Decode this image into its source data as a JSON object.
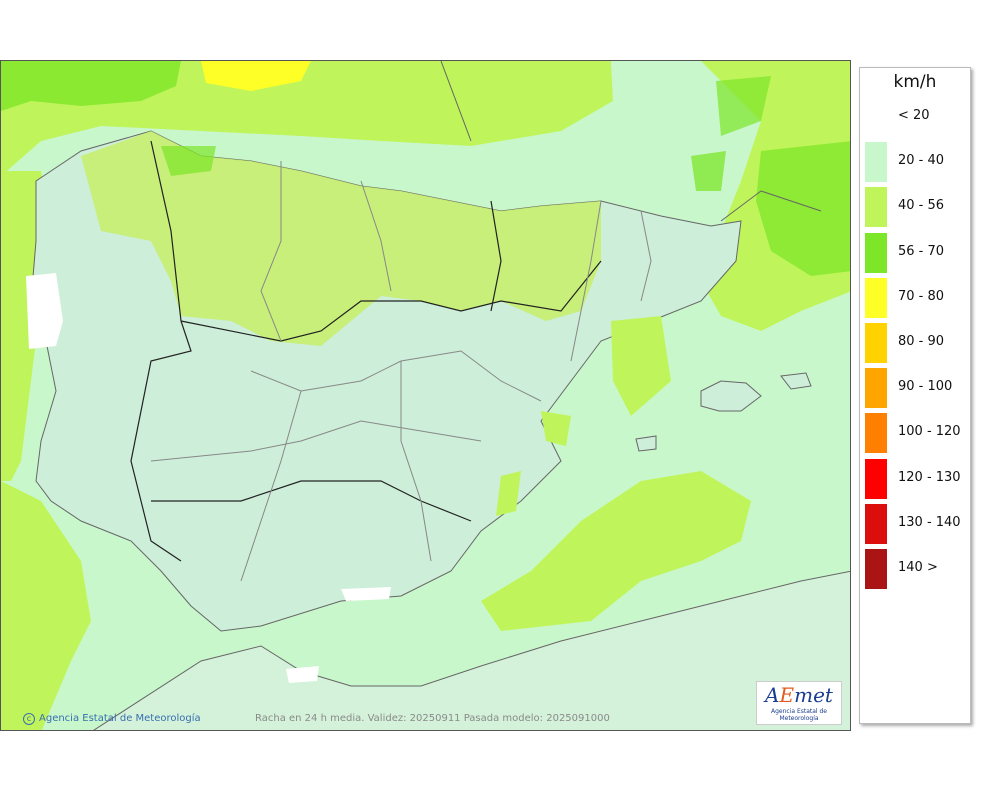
{
  "legend": {
    "title": "km/h",
    "items": [
      {
        "label": "< 20",
        "color": null
      },
      {
        "label": "20 - 40",
        "color": "#c8f7cc"
      },
      {
        "label": "40 - 56",
        "color": "#bff55a"
      },
      {
        "label": "56 - 70",
        "color": "#7ee628"
      },
      {
        "label": "70 - 80",
        "color": "#ffff28"
      },
      {
        "label": "80 - 90",
        "color": "#ffd200"
      },
      {
        "label": "90 - 100",
        "color": "#ffa500"
      },
      {
        "label": "100 - 120",
        "color": "#ff8000"
      },
      {
        "label": "120 - 130",
        "color": "#ff0000"
      },
      {
        "label": "130 - 140",
        "color": "#dc0d0d"
      },
      {
        "label": "140 >",
        "color": "#aa1414"
      }
    ]
  },
  "footer": {
    "credit": "Agencia Estatal de Meteorología",
    "caption": "Racha en 24 h media. Validez: 20250911 Pasada modelo: 2025091000"
  },
  "logo": {
    "text": "AEmet",
    "subtitle": "Agencia Estatal de Meteorología"
  }
}
